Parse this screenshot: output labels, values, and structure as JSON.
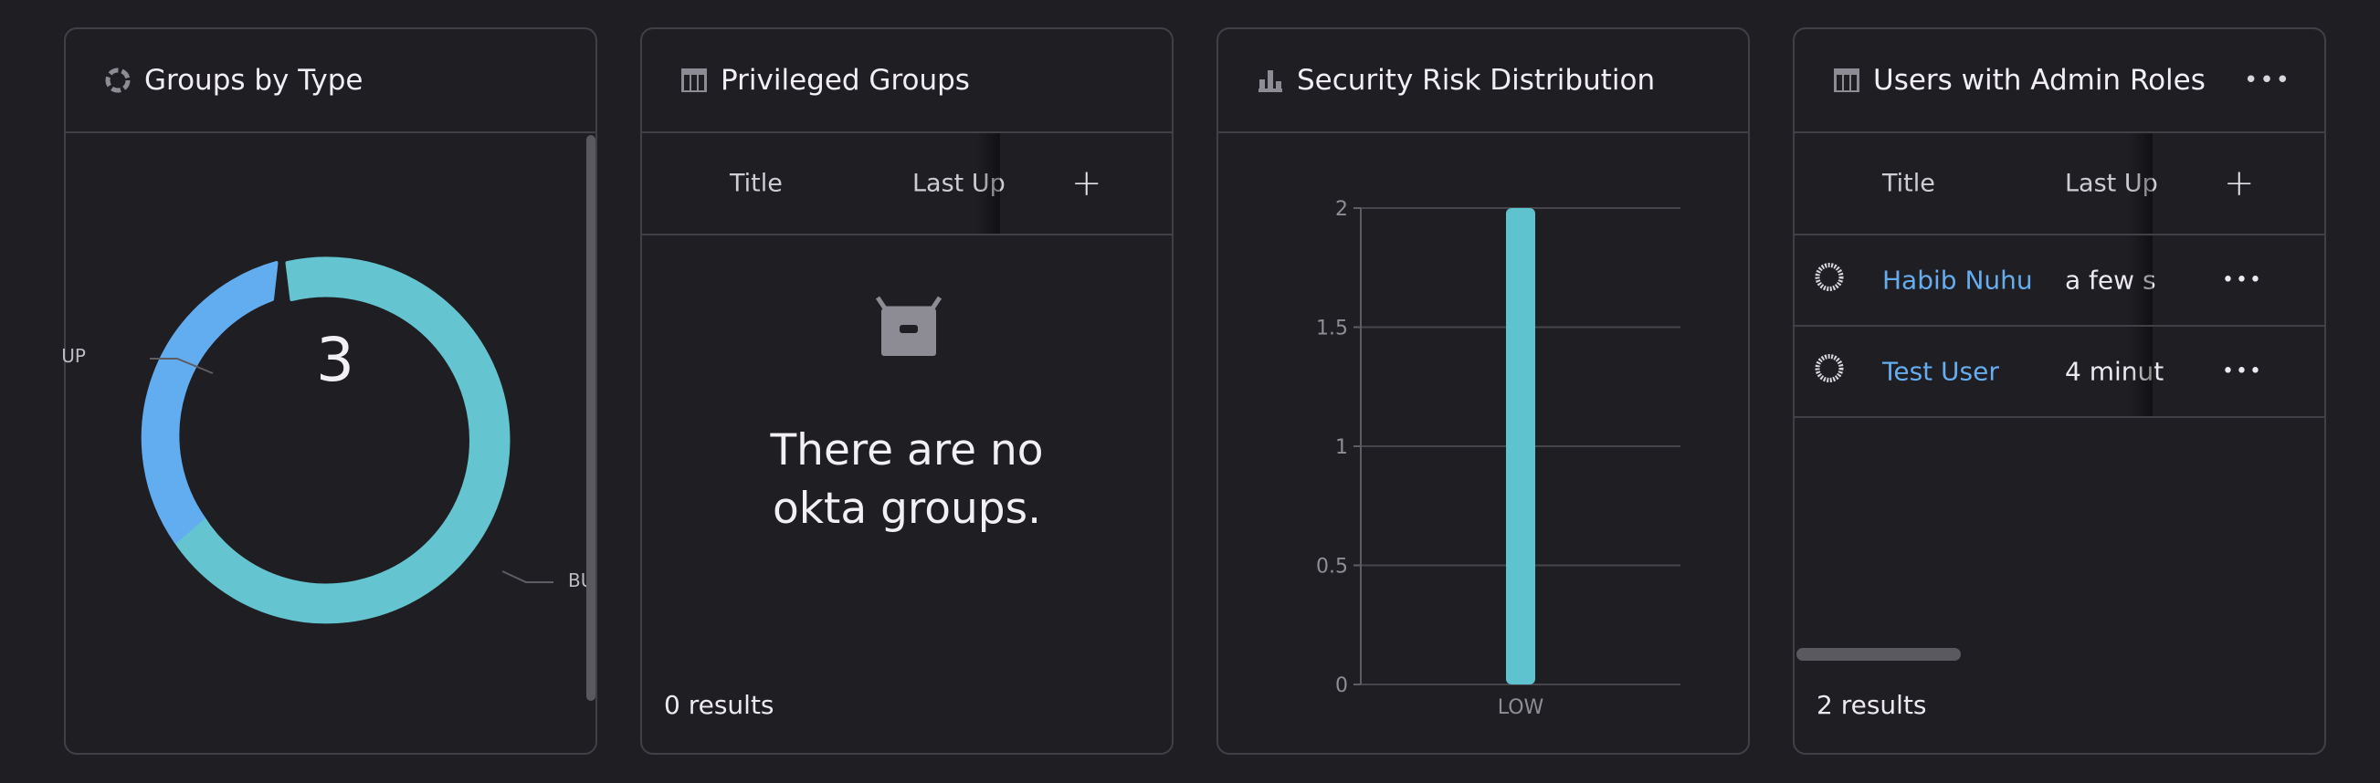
{
  "cards": {
    "groups_by_type": {
      "title": "Groups by Type",
      "icon": "donut-chart-icon",
      "total": "3",
      "labels": [
        "UP",
        "BU"
      ]
    },
    "privileged_groups": {
      "title": "Privileged Groups",
      "icon": "table-icon",
      "columns": [
        "Title",
        "Last Up"
      ],
      "add_column": "+",
      "empty_message_line1": "There are no",
      "empty_message_line2": "okta groups.",
      "results": "0 results"
    },
    "security_risk": {
      "title": "Security Risk Distribution",
      "icon": "bar-chart-icon"
    },
    "admin_users": {
      "title": "Users with Admin Roles",
      "icon": "table-icon",
      "columns": [
        "Title",
        "Last Up"
      ],
      "add_column": "+",
      "rows": [
        {
          "name": "Habib Nuhu",
          "updated": "a few s"
        },
        {
          "name": "Test User",
          "updated": "4 minut"
        }
      ],
      "results": "2 results"
    }
  },
  "chart_data": [
    {
      "type": "pie",
      "title": "Groups by Type",
      "labels": [
        "UP",
        "BU"
      ],
      "values": [
        1,
        2
      ],
      "total": 3,
      "colors": [
        "#63aef1",
        "#63c6cf"
      ]
    },
    {
      "type": "bar",
      "title": "Security Risk Distribution",
      "categories": [
        "LOW"
      ],
      "values": [
        2
      ],
      "ylim": [
        0,
        2
      ],
      "yticks": [
        "0",
        "0.5",
        "1",
        "1.5",
        "2"
      ],
      "grid": true,
      "color": "#5fc3cf"
    }
  ]
}
